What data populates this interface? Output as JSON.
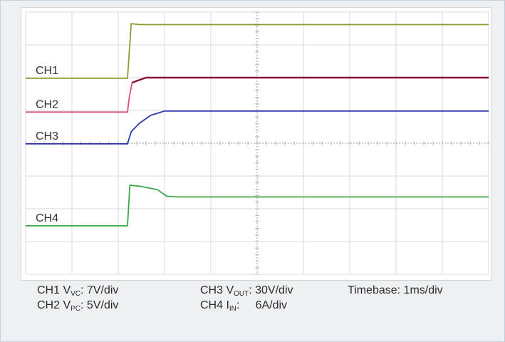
{
  "chart_data": {
    "type": "line",
    "title": "",
    "xlabel": "",
    "ylabel": "",
    "grid": true,
    "timebase_label": "Timebase: 1ms/div",
    "x_divisions": 10,
    "y_divisions": 8,
    "series": [
      {
        "name": "CH1",
        "color": "#8e9b2e",
        "points": [
          [
            0,
            5.98
          ],
          [
            2.2,
            5.98
          ],
          [
            2.28,
            7.65
          ],
          [
            2.45,
            7.62
          ],
          [
            10,
            7.62
          ]
        ]
      },
      {
        "name": "CH2",
        "color": "#d84d8d",
        "accent": "#8b0f37",
        "points": [
          [
            0,
            4.95
          ],
          [
            2.2,
            4.95
          ],
          [
            2.24,
            5.42
          ],
          [
            2.3,
            5.85
          ],
          [
            2.6,
            6.0
          ],
          [
            10,
            6.0
          ]
        ]
      },
      {
        "name": "CH3",
        "color": "#2e39a9",
        "points": [
          [
            0,
            3.98
          ],
          [
            2.2,
            3.98
          ],
          [
            2.28,
            4.35
          ],
          [
            2.45,
            4.6
          ],
          [
            2.7,
            4.85
          ],
          [
            3.0,
            4.98
          ],
          [
            10,
            4.98
          ]
        ]
      },
      {
        "name": "CH4",
        "color": "#3fa64b",
        "points": [
          [
            0,
            1.48
          ],
          [
            2.2,
            1.48
          ],
          [
            2.25,
            2.72
          ],
          [
            2.5,
            2.68
          ],
          [
            2.85,
            2.58
          ],
          [
            3.05,
            2.38
          ],
          [
            3.3,
            2.36
          ],
          [
            10,
            2.36
          ]
        ]
      }
    ]
  },
  "legend": {
    "ch1": {
      "prefix": "CH1 V",
      "sub": "VC",
      "value": ": 7V/div"
    },
    "ch2": {
      "prefix": "CH2 V",
      "sub": "PC",
      "value": ": 5V/div"
    },
    "ch3": {
      "prefix": "CH3 V",
      "sub": "OUT",
      "value": ": 30V/div"
    },
    "ch4": {
      "prefix": "CH4 I",
      "sub": "IN",
      "value": ":     6A/div"
    },
    "timebase": "Timebase: 1ms/div"
  }
}
